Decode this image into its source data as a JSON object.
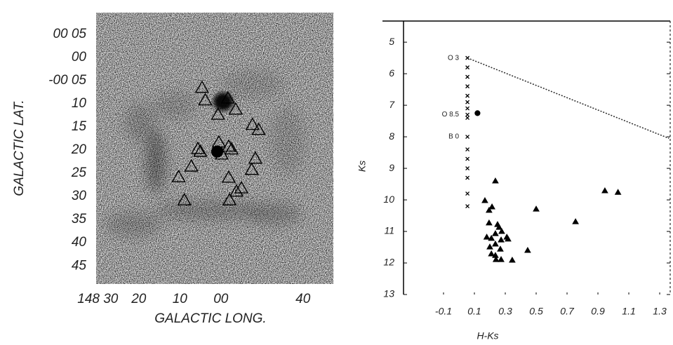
{
  "chart_data": [
    {
      "type": "scatter",
      "xlabel": "GALACTIC LONG.",
      "ylabel": "GALACTIC LAT.",
      "xlim": [
        8910.4,
        8852.6
      ],
      "ylim": [
        -48.9,
        9.7
      ],
      "xticks": [
        {
          "value": 8910,
          "label": "148 30"
        },
        {
          "value": 8900,
          "label": "20"
        },
        {
          "value": 8890,
          "label": "10"
        },
        {
          "value": 8880,
          "label": "00"
        },
        {
          "value": 8860,
          "label": "40"
        }
      ],
      "yticks": [
        {
          "value": 5,
          "label": "00 05"
        },
        {
          "value": 0,
          "label": "00"
        },
        {
          "value": -5,
          "label": "-00 05"
        },
        {
          "value": -10,
          "label": "10"
        },
        {
          "value": -15,
          "label": "15"
        },
        {
          "value": -20,
          "label": "20"
        },
        {
          "value": -25,
          "label": "25"
        },
        {
          "value": -30,
          "label": "30"
        },
        {
          "value": -35,
          "label": "35"
        },
        {
          "value": -40,
          "label": "40"
        },
        {
          "value": -45,
          "label": "45"
        }
      ],
      "series": [
        {
          "marker": "triangle",
          "color": "#000000",
          "filled": false,
          "x": [
            8884.6,
            8883.8,
            8878.3,
            8876.4,
            8880.7,
            8872.3,
            8870.8,
            8885.6,
            8885.0,
            8880.5,
            8878.1,
            8877.4,
            8879.8,
            8871.6,
            8872.5,
            8887.2,
            8890.3,
            8878.1,
            8875.0,
            8876.2,
            8888.9,
            8877.9
          ],
          "y": [
            -6.5,
            -9.2,
            -8.8,
            -11.2,
            -12.3,
            -14.5,
            -15.6,
            -19.7,
            -20.3,
            -18.3,
            -19.2,
            -19.8,
            -20.9,
            -21.8,
            -24.2,
            -23.5,
            -25.8,
            -25.9,
            -28.2,
            -28.9,
            -30.8,
            -30.8
          ]
        },
        {
          "marker": "circle",
          "color": "#000000",
          "filled": true,
          "x": [
            8880.9
          ],
          "y": [
            -20.3
          ]
        }
      ]
    },
    {
      "type": "scatter",
      "xlabel": "H-Ks",
      "ylabel": "Ks",
      "xlim": [
        -0.359,
        1.368
      ],
      "ylim": [
        13,
        4.33
      ],
      "xticks": [
        -0.1,
        0.1,
        0.3,
        0.5,
        0.7,
        0.9,
        1.1,
        1.3
      ],
      "yticks": [
        5,
        6,
        7,
        8,
        9,
        10,
        11,
        12,
        13
      ],
      "annotations": [
        "O 3",
        "O 8.5",
        "B 0"
      ],
      "series": [
        {
          "marker": "cross",
          "color": "#000000",
          "x": [
            0.055,
            0.055,
            0.055,
            0.055,
            0.055,
            0.055,
            0.055,
            0.055,
            0.055,
            0.055,
            0.055,
            0.055,
            0.055,
            0.055,
            0.055,
            0.055
          ],
          "y": [
            5.5,
            5.8,
            6.1,
            6.4,
            6.7,
            6.9,
            7.1,
            7.3,
            7.4,
            8.0,
            8.4,
            8.7,
            9.0,
            9.3,
            9.8,
            10.2
          ]
        },
        {
          "marker": "circle",
          "color": "#000000",
          "filled": true,
          "x": [
            0.12
          ],
          "y": [
            7.25
          ]
        },
        {
          "marker": "triangle",
          "color": "#000000",
          "filled": true,
          "x": [
            0.236,
            0.168,
            0.195,
            0.214,
            0.5,
            0.945,
            1.03,
            0.755,
            0.195,
            0.25,
            0.26,
            0.277,
            0.236,
            0.18,
            0.31,
            0.21,
            0.273,
            0.318,
            0.236,
            0.2,
            0.268,
            0.21,
            0.236,
            0.445,
            0.273,
            0.24,
            0.345
          ],
          "y": [
            9.4,
            10.02,
            10.33,
            10.22,
            10.29,
            9.71,
            9.76,
            10.69,
            10.73,
            10.78,
            10.87,
            11.0,
            11.07,
            11.18,
            11.18,
            11.22,
            11.27,
            11.24,
            11.4,
            11.49,
            11.56,
            11.71,
            11.76,
            11.6,
            11.89,
            11.89,
            11.91
          ]
        },
        {
          "marker": "line",
          "color": "#333333",
          "dash": "2 2",
          "x": [
            0.055,
            1.36
          ],
          "y": [
            5.5,
            8.05
          ]
        }
      ]
    }
  ]
}
